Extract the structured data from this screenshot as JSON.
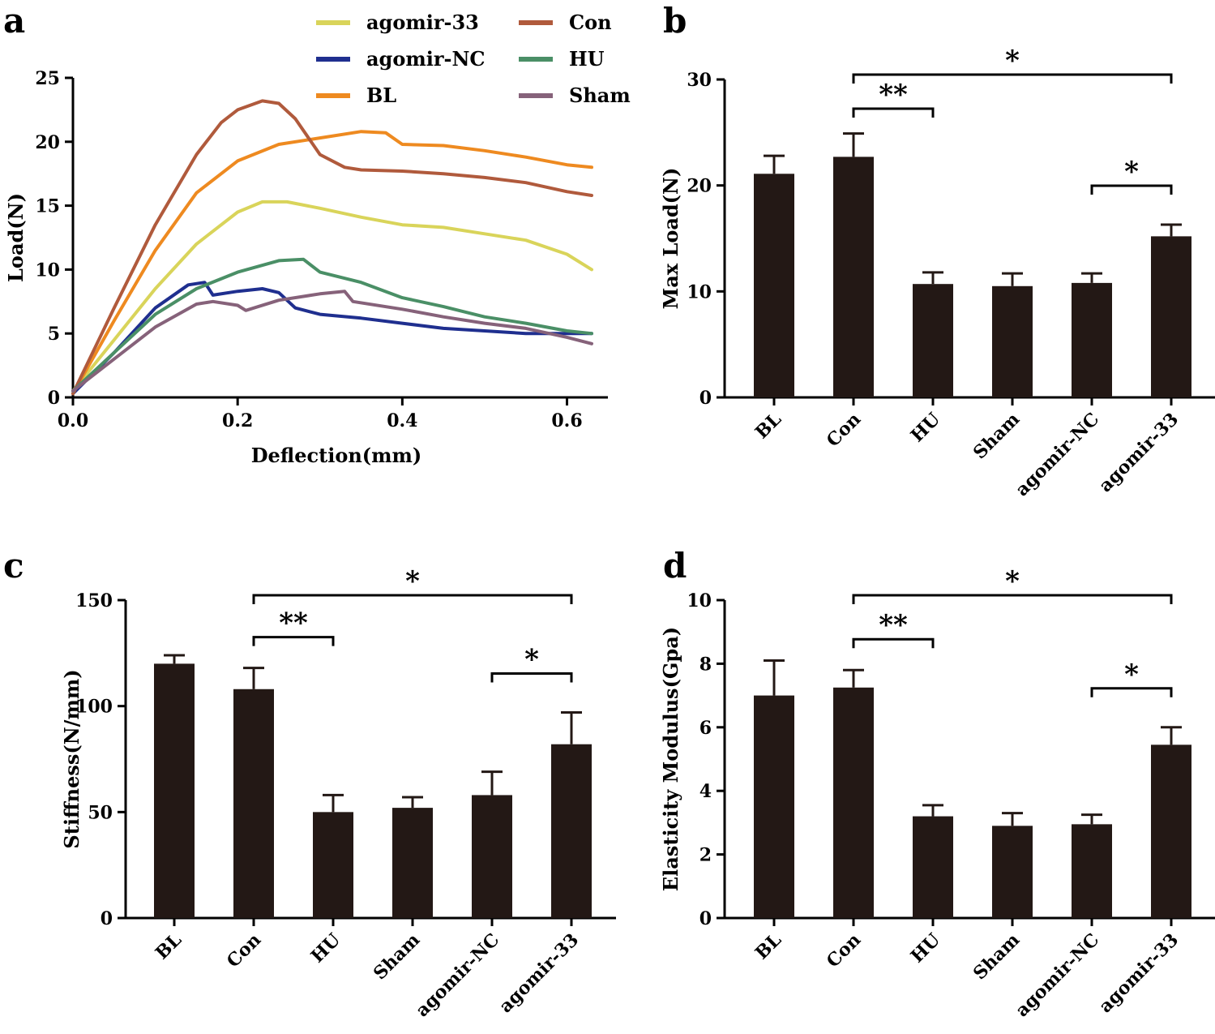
{
  "colors": {
    "bar": "#231815",
    "agomir-33": "#d9d45a",
    "agomir-NC": "#1f2f8f",
    "BL": "#ee8a20",
    "Con": "#b05a3c",
    "HU": "#4a8f66",
    "Sham": "#86627a"
  },
  "panels": {
    "a": "a",
    "b": "b",
    "c": "c",
    "d": "d"
  },
  "chart_data": [
    {
      "panel": "a",
      "type": "line",
      "title": "",
      "xlabel": "Deflection(mm)",
      "ylabel": "Load(N)",
      "xlim": [
        0,
        0.63
      ],
      "ylim": [
        0,
        25
      ],
      "xticks": [
        "0.0",
        "0.2",
        "0.4",
        "0.6"
      ],
      "yticks": [
        "0",
        "5",
        "10",
        "15",
        "20",
        "25"
      ],
      "legend_position": "top",
      "series": [
        {
          "name": "agomir-33",
          "x": [
            0.0,
            0.05,
            0.1,
            0.15,
            0.2,
            0.23,
            0.26,
            0.3,
            0.35,
            0.4,
            0.45,
            0.5,
            0.55,
            0.6,
            0.63
          ],
          "y": [
            0.5,
            4.5,
            8.5,
            12.0,
            14.5,
            15.3,
            15.3,
            14.8,
            14.1,
            13.5,
            13.3,
            12.8,
            12.3,
            11.2,
            10.0
          ]
        },
        {
          "name": "agomir-NC",
          "x": [
            0.0,
            0.05,
            0.1,
            0.14,
            0.16,
            0.17,
            0.2,
            0.23,
            0.25,
            0.27,
            0.3,
            0.35,
            0.4,
            0.45,
            0.5,
            0.55,
            0.6,
            0.63
          ],
          "y": [
            0.3,
            3.5,
            7.0,
            8.8,
            9.0,
            8.0,
            8.3,
            8.5,
            8.2,
            7.0,
            6.5,
            6.2,
            5.8,
            5.4,
            5.2,
            5.0,
            5.0,
            5.0
          ]
        },
        {
          "name": "BL",
          "x": [
            0.0,
            0.05,
            0.1,
            0.15,
            0.2,
            0.25,
            0.3,
            0.35,
            0.38,
            0.4,
            0.45,
            0.5,
            0.55,
            0.6,
            0.63
          ],
          "y": [
            0.3,
            6.0,
            11.5,
            16.0,
            18.5,
            19.8,
            20.3,
            20.8,
            20.7,
            19.8,
            19.7,
            19.3,
            18.8,
            18.2,
            18.0
          ]
        },
        {
          "name": "Con",
          "x": [
            0.0,
            0.05,
            0.1,
            0.15,
            0.18,
            0.2,
            0.23,
            0.25,
            0.27,
            0.3,
            0.33,
            0.35,
            0.4,
            0.45,
            0.5,
            0.55,
            0.6,
            0.63
          ],
          "y": [
            0.3,
            7.0,
            13.5,
            19.0,
            21.5,
            22.5,
            23.2,
            23.0,
            21.8,
            19.0,
            18.0,
            17.8,
            17.7,
            17.5,
            17.2,
            16.8,
            16.1,
            15.8
          ]
        },
        {
          "name": "HU",
          "x": [
            0.0,
            0.05,
            0.1,
            0.15,
            0.2,
            0.25,
            0.28,
            0.3,
            0.35,
            0.4,
            0.45,
            0.5,
            0.55,
            0.6,
            0.63
          ],
          "y": [
            0.5,
            3.5,
            6.5,
            8.5,
            9.8,
            10.7,
            10.8,
            9.8,
            9.0,
            7.8,
            7.1,
            6.3,
            5.8,
            5.2,
            5.0
          ]
        },
        {
          "name": "Sham",
          "x": [
            0.0,
            0.05,
            0.1,
            0.15,
            0.17,
            0.2,
            0.21,
            0.25,
            0.3,
            0.33,
            0.34,
            0.4,
            0.45,
            0.5,
            0.55,
            0.6,
            0.63
          ],
          "y": [
            0.5,
            3.0,
            5.5,
            7.3,
            7.5,
            7.2,
            6.8,
            7.6,
            8.1,
            8.3,
            7.5,
            6.9,
            6.3,
            5.8,
            5.4,
            4.7,
            4.2
          ]
        }
      ]
    },
    {
      "panel": "b",
      "type": "bar",
      "title": "",
      "xlabel": "",
      "ylabel": "Max Load(N)",
      "ylim": [
        0,
        30
      ],
      "yticks": [
        "0",
        "10",
        "20",
        "30"
      ],
      "categories": [
        "BL",
        "Con",
        "HU",
        "Sham",
        "agomir-NC",
        "agomir-33"
      ],
      "values": [
        21.1,
        22.7,
        10.7,
        10.5,
        10.8,
        15.2
      ],
      "errors": [
        1.7,
        2.2,
        1.1,
        1.2,
        0.9,
        1.1
      ],
      "significance": [
        {
          "from": 1,
          "to": 5,
          "label": "*",
          "level": 3
        },
        {
          "from": 1,
          "to": 2,
          "label": "**",
          "level": 1
        },
        {
          "from": 4,
          "to": 5,
          "label": "*",
          "level": 2
        }
      ]
    },
    {
      "panel": "c",
      "type": "bar",
      "title": "",
      "xlabel": "",
      "ylabel": "Stiffness(N/mm)",
      "ylim": [
        0,
        150
      ],
      "yticks": [
        "0",
        "50",
        "100",
        "150"
      ],
      "categories": [
        "BL",
        "Con",
        "HU",
        "Sham",
        "agomir-NC",
        "agomir-33"
      ],
      "values": [
        120,
        108,
        50,
        52,
        58,
        82
      ],
      "errors": [
        4,
        10,
        8,
        5,
        11,
        15
      ],
      "significance": [
        {
          "from": 1,
          "to": 5,
          "label": "*",
          "level": 3
        },
        {
          "from": 1,
          "to": 2,
          "label": "**",
          "level": 1
        },
        {
          "from": 4,
          "to": 5,
          "label": "*",
          "level": 2
        }
      ]
    },
    {
      "panel": "d",
      "type": "bar",
      "title": "",
      "xlabel": "",
      "ylabel": "Elasticity Modulus(Gpa)",
      "ylim": [
        0,
        10
      ],
      "yticks": [
        "0",
        "2",
        "4",
        "6",
        "8",
        "10"
      ],
      "categories": [
        "BL",
        "Con",
        "HU",
        "Sham",
        "agomir-NC",
        "agomir-33"
      ],
      "values": [
        7.0,
        7.25,
        3.2,
        2.9,
        2.95,
        5.45
      ],
      "errors": [
        1.1,
        0.55,
        0.35,
        0.4,
        0.3,
        0.55
      ],
      "significance": [
        {
          "from": 1,
          "to": 5,
          "label": "*",
          "level": 3
        },
        {
          "from": 1,
          "to": 2,
          "label": "**",
          "level": 1
        },
        {
          "from": 4,
          "to": 5,
          "label": "*",
          "level": 2
        }
      ]
    }
  ]
}
